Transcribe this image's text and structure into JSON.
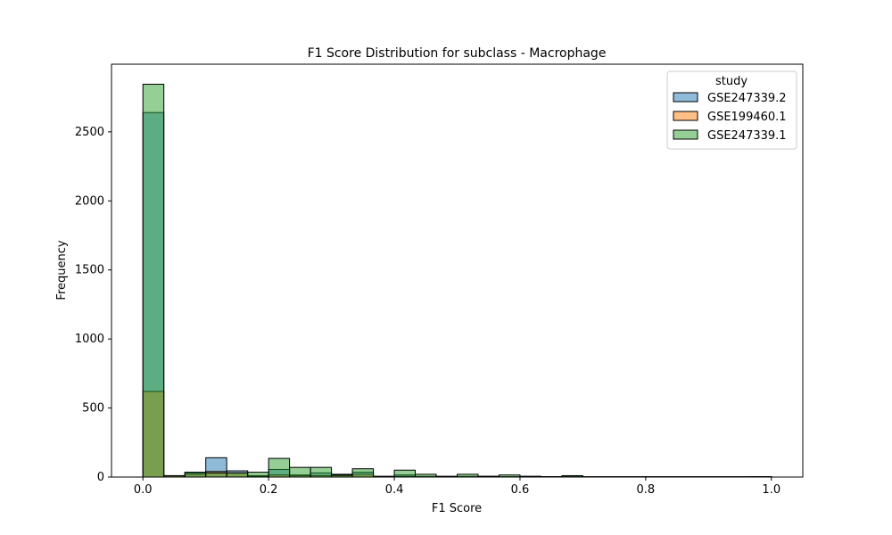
{
  "chart_data": {
    "type": "bar",
    "title": "F1 Score Distribution for subclass - Macrophage",
    "xlabel": "F1 Score",
    "ylabel": "Frequency",
    "xlim": [
      -0.05,
      1.05
    ],
    "ylim": [
      0,
      2990
    ],
    "x_ticks": [
      0.0,
      0.2,
      0.4,
      0.6,
      0.8,
      1.0
    ],
    "x_tick_labels": [
      "0.0",
      "0.2",
      "0.4",
      "0.6",
      "0.8",
      "1.0"
    ],
    "y_ticks": [
      0,
      500,
      1000,
      1500,
      2000,
      2500
    ],
    "y_tick_labels": [
      "0",
      "500",
      "1000",
      "1500",
      "2000",
      "2500"
    ],
    "grid": false,
    "histogram": true,
    "bin_edges": [
      0.0,
      0.0333,
      0.0667,
      0.1,
      0.1333,
      0.1667,
      0.2,
      0.2333,
      0.2667,
      0.3,
      0.3333,
      0.3667,
      0.4,
      0.4333,
      0.4667,
      0.5,
      0.5333,
      0.5667,
      0.6,
      0.6333,
      0.6667,
      0.7,
      0.7333,
      0.7667,
      0.8,
      0.8333,
      0.8667,
      0.9,
      0.9333,
      0.9667,
      1.0
    ],
    "legend": {
      "title": "study",
      "placement": "upper right",
      "entries": [
        "GSE247339.2",
        "GSE199460.1",
        "GSE247339.1"
      ]
    },
    "series": [
      {
        "name": "GSE247339.2",
        "color": "#1f77b4",
        "values": [
          2640,
          5,
          30,
          140,
          45,
          10,
          55,
          15,
          30,
          20,
          35,
          5,
          15,
          5,
          5,
          5,
          5,
          3,
          5,
          3,
          3,
          2,
          2,
          2,
          2,
          2,
          2,
          2,
          2,
          3
        ]
      },
      {
        "name": "GSE199460.1",
        "color": "#ff7f0e",
        "values": [
          620,
          10,
          20,
          40,
          30,
          5,
          15,
          10,
          10,
          10,
          20,
          2,
          5,
          2,
          2,
          2,
          5,
          2,
          3,
          2,
          5,
          1,
          1,
          1,
          1,
          1,
          1,
          1,
          1,
          2
        ]
      },
      {
        "name": "GSE247339.1",
        "color": "#2ca02c",
        "values": [
          2845,
          10,
          35,
          30,
          30,
          35,
          135,
          70,
          70,
          15,
          60,
          5,
          50,
          20,
          5,
          20,
          5,
          15,
          5,
          2,
          10,
          2,
          2,
          2,
          2,
          2,
          2,
          2,
          2,
          3
        ]
      }
    ]
  }
}
